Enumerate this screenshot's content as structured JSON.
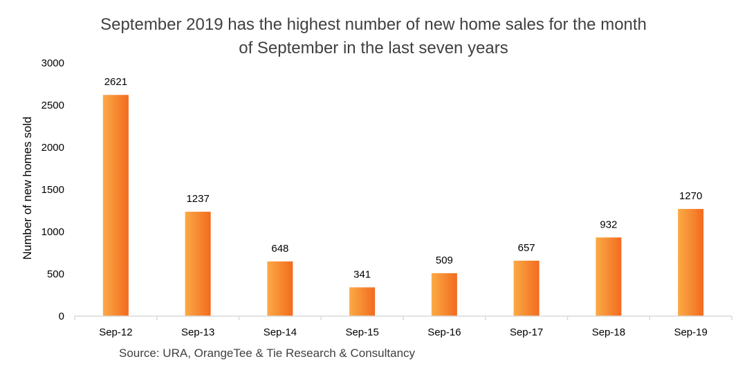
{
  "chart_data": {
    "type": "bar",
    "title_lines": [
      "September 2019 has the highest number of new home sales for the month",
      "of September in the last seven years"
    ],
    "ylabel": "Number of new homes sold",
    "xlabel": "",
    "categories": [
      "Sep-12",
      "Sep-13",
      "Sep-14",
      "Sep-15",
      "Sep-16",
      "Sep-17",
      "Sep-18",
      "Sep-19"
    ],
    "values": [
      2621,
      1237,
      648,
      341,
      509,
      657,
      932,
      1270
    ],
    "data_labels": [
      "2621",
      "1237",
      "648",
      "341",
      "509",
      "657",
      "932",
      "1270"
    ],
    "ylim": [
      0,
      3000
    ],
    "yticks": [
      "0",
      "500",
      "1000",
      "1500",
      "2000",
      "2500",
      "3000"
    ],
    "grid": false,
    "legend": "none",
    "source": "Source: URA, OrangeTee & Tie Research & Consultancy",
    "colors": {
      "bar_light": "#fbaa45",
      "bar_dark": "#f26b1f",
      "axis": "#d9d9d9",
      "title": "#404040"
    }
  }
}
